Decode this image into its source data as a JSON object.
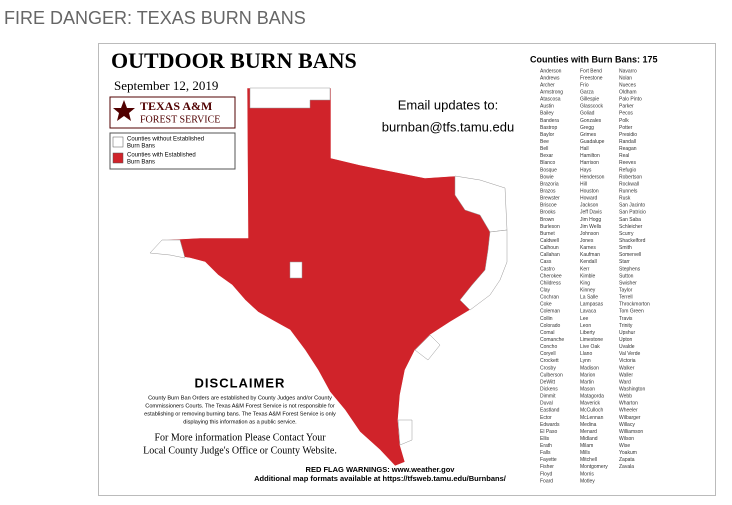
{
  "header": {
    "title": "FIRE DANGER: TEXAS BURN BANS"
  },
  "map": {
    "title": "OUTDOOR BURN BANS",
    "date": "September 12, 2019",
    "logo": {
      "line1": "TEXAS A&M",
      "line2": "FOREST SERVICE"
    },
    "legend": [
      {
        "label": [
          "Counties without Established",
          "Burn Bans"
        ],
        "color": "#ffffff"
      },
      {
        "label": [
          "Counties with Established",
          "Burn Bans"
        ],
        "color": "#d0232a"
      }
    ],
    "email": {
      "lead": "Email updates to:",
      "address": "burnban@tfs.tamu.edu"
    },
    "counties_heading": "Counties with Burn Bans: 175",
    "counties": [
      [
        "Anderson",
        "Andrews",
        "Archer",
        "Armstrong",
        "Atascosa",
        "Austin",
        "Bailey",
        "Bandera",
        "Bastrop",
        "Baylor",
        "Bee",
        "Bell",
        "Bexar",
        "Blanco",
        "Bosque",
        "Bowie",
        "Brazoria",
        "Brazos",
        "Brewster",
        "Briscoe",
        "Brooks",
        "Brown",
        "Burleson",
        "Burnet",
        "Caldwell",
        "Calhoun",
        "Callahan",
        "Cass",
        "Castro",
        "Cherokee",
        "Childress",
        "Clay",
        "Cochran",
        "Coke",
        "Coleman",
        "Collin",
        "Colorado",
        "Comal",
        "Comanche",
        "Concho",
        "Coryell",
        "Crockett",
        "Crosby",
        "Culberson",
        "DeWitt",
        "Dickens",
        "Dimmit",
        "Duval",
        "Eastland",
        "Ector",
        "Edwards",
        "El Paso",
        "Ellis",
        "Erath",
        "Falls",
        "Fayette",
        "Fisher",
        "Floyd",
        "Foard"
      ],
      [
        "Fort Bend",
        "Freestone",
        "Frio",
        "Garza",
        "Gillespie",
        "Glasscock",
        "Goliad",
        "Gonzales",
        "Gregg",
        "Grimes",
        "Guadalupe",
        "Hall",
        "Hamilton",
        "Harrison",
        "Hays",
        "Henderson",
        "Hill",
        "Houston",
        "Howard",
        "Jackson",
        "Jeff Davis",
        "Jim Hogg",
        "Jim Wells",
        "Johnson",
        "Jones",
        "Karnes",
        "Kaufman",
        "Kendall",
        "Kerr",
        "Kimble",
        "King",
        "Kinney",
        "La Salle",
        "Lampasas",
        "Lavaca",
        "Lee",
        "Leon",
        "Liberty",
        "Limestone",
        "Live Oak",
        "Llano",
        "Lynn",
        "Madison",
        "Marion",
        "Martin",
        "Mason",
        "Matagorda",
        "Maverick",
        "McCulloch",
        "McLennan",
        "Medina",
        "Menard",
        "Midland",
        "Milam",
        "Mills",
        "Mitchell",
        "Montgomery",
        "Morris",
        "Motley"
      ],
      [
        "Navarro",
        "Nolan",
        "Nueces",
        "Oldham",
        "Palo Pinto",
        "Parker",
        "Pecos",
        "Polk",
        "Potter",
        "Presidio",
        "Randall",
        "Reagan",
        "Real",
        "Reeves",
        "Refugio",
        "Robertson",
        "Rockwall",
        "Runnels",
        "Rusk",
        "San Jacinto",
        "San Patricio",
        "San Saba",
        "Schleicher",
        "Scurry",
        "Shackelford",
        "Smith",
        "Somervell",
        "Starr",
        "Stephens",
        "Sutton",
        "Swisher",
        "Taylor",
        "Terrell",
        "Throckmorton",
        "Tom Green",
        "Travis",
        "Trinity",
        "Upshur",
        "Upton",
        "Uvalde",
        "Val Verde",
        "Victoria",
        "Walker",
        "Waller",
        "Ward",
        "Washington",
        "Webb",
        "Wharton",
        "Wheeler",
        "Wilbarger",
        "Willacy",
        "Williamson",
        "Wilson",
        "Wise",
        "Yoakum",
        "Zapata",
        "Zavala"
      ]
    ],
    "disclaimer": {
      "heading": "DISCLAIMER",
      "lines": [
        "County Burn Ban Orders are established by County Judges and/or County",
        "Commissioners Courts. The Texas A&M Forest Service is not responsible for",
        "establishing or removing burning bans. The Texas A&M Forest Service is only",
        "displaying this information as a public service."
      ]
    },
    "contact": [
      "For More information Please Contact Your",
      "Local County Judge's Office or County Website."
    ],
    "footer": [
      "RED FLAG WARNINGS: www.weather.gov",
      "Additional map formats available at https://tfsweb.tamu.edu/Burnbans/"
    ]
  }
}
